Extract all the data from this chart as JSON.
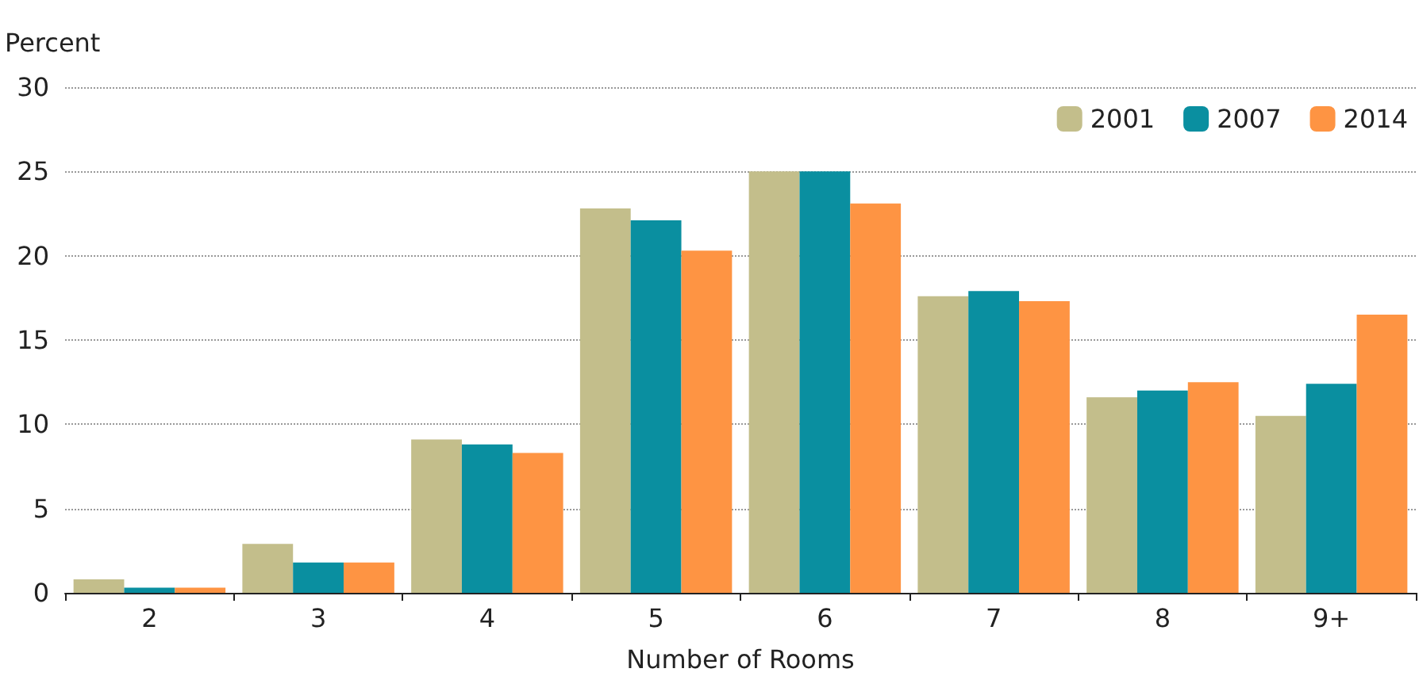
{
  "chart_data": {
    "type": "bar",
    "xlabel": "Number of Rooms",
    "ylabel": "Percent",
    "categories": [
      "2",
      "3",
      "4",
      "5",
      "6",
      "7",
      "8",
      "9+"
    ],
    "series": [
      {
        "name": "2001",
        "color": "#c3be8b",
        "values": [
          0.8,
          2.9,
          9.1,
          22.8,
          25.0,
          17.6,
          11.6,
          10.5
        ]
      },
      {
        "name": "2007",
        "color": "#0a8fa0",
        "values": [
          0.3,
          1.8,
          8.8,
          22.1,
          25.0,
          17.9,
          12.0,
          12.4
        ]
      },
      {
        "name": "2014",
        "color": "#fe9443",
        "values": [
          0.3,
          1.8,
          8.3,
          20.3,
          23.1,
          17.3,
          12.5,
          16.5
        ]
      }
    ],
    "ylim": [
      0,
      30
    ],
    "yticks": [
      0,
      5,
      10,
      15,
      20,
      25,
      30
    ],
    "grid": "y",
    "legend": "top right"
  }
}
